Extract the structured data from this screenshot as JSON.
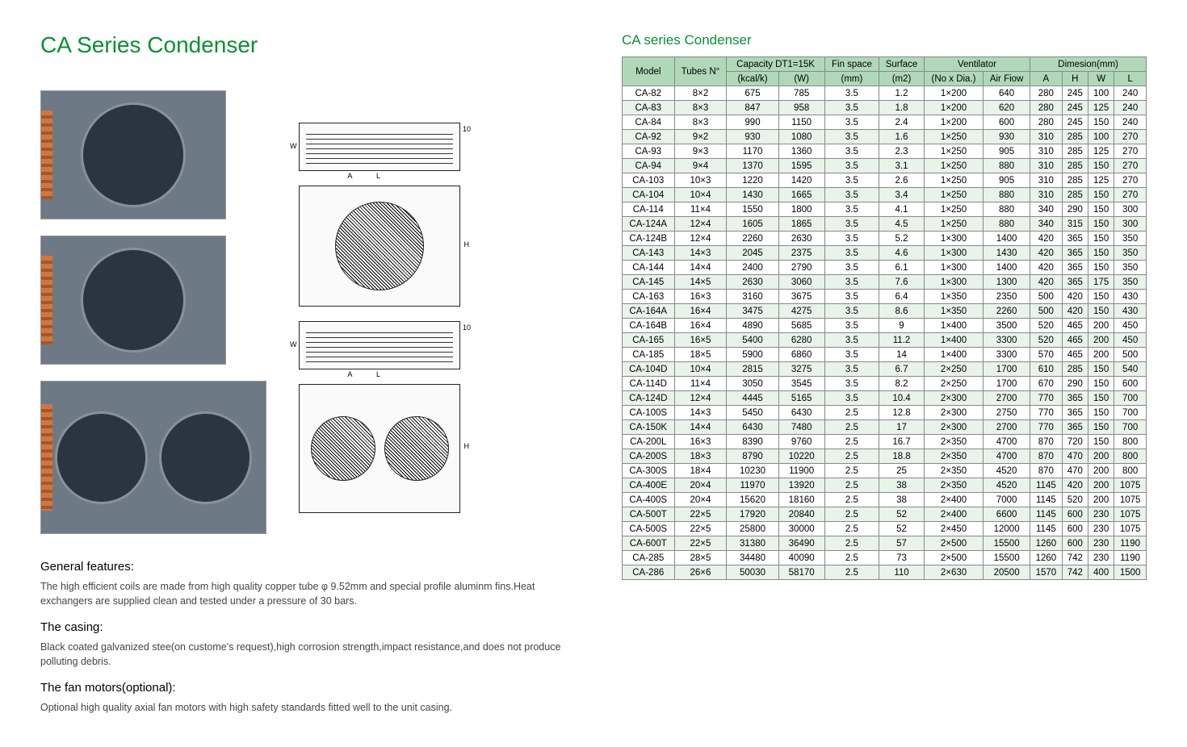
{
  "main_title": "CA Series Condenser",
  "table_title": "CA series Condenser",
  "features": {
    "h1": "General features:",
    "p1": "The high efficient coils are made from high quality copper tube φ 9.52mm and special profile aluminm fins.Heat exchangers are supplied clean and tested under a pressure of 30 bars.",
    "h2": "The casing:",
    "p2": "Black coated galvanized stee(on custome's request),high corrosion strength,impact resistance,and does not produce polluting debris.",
    "h3": "The fan motors(optional):",
    "p3": "Optional high quality axial fan motors with high safety standards fitted well to the unit casing."
  },
  "table": {
    "headers": {
      "model": "Model",
      "tubes": "Tubes N°",
      "capacity": "Capacity DT1=15K",
      "kcalk": "(kcal/k)",
      "w": "(W)",
      "finspace": "Fin space",
      "mm": "(mm)",
      "surface": "Surface",
      "m2": "(m2)",
      "ventilator": "Ventilator",
      "noxdia": "(No x Dia.)",
      "airflow": "Air Fiow",
      "dimension": "Dimesion(mm)",
      "A": "A",
      "H": "H",
      "W": "W",
      "L": "L"
    },
    "rows": [
      [
        "CA-82",
        "8×2",
        "675",
        "785",
        "3.5",
        "1.2",
        "1×200",
        "640",
        "280",
        "245",
        "100",
        "240"
      ],
      [
        "CA-83",
        "8×3",
        "847",
        "958",
        "3.5",
        "1.8",
        "1×200",
        "620",
        "280",
        "245",
        "125",
        "240"
      ],
      [
        "CA-84",
        "8×3",
        "990",
        "1150",
        "3.5",
        "2.4",
        "1×200",
        "600",
        "280",
        "245",
        "150",
        "240"
      ],
      [
        "CA-92",
        "9×2",
        "930",
        "1080",
        "3.5",
        "1.6",
        "1×250",
        "930",
        "310",
        "285",
        "100",
        "270"
      ],
      [
        "CA-93",
        "9×3",
        "1170",
        "1360",
        "3.5",
        "2.3",
        "1×250",
        "905",
        "310",
        "285",
        "125",
        "270"
      ],
      [
        "CA-94",
        "9×4",
        "1370",
        "1595",
        "3.5",
        "3.1",
        "1×250",
        "880",
        "310",
        "285",
        "150",
        "270"
      ],
      [
        "CA-103",
        "10×3",
        "1220",
        "1420",
        "3.5",
        "2.6",
        "1×250",
        "905",
        "310",
        "285",
        "125",
        "270"
      ],
      [
        "CA-104",
        "10×4",
        "1430",
        "1665",
        "3.5",
        "3.4",
        "1×250",
        "880",
        "310",
        "285",
        "150",
        "270"
      ],
      [
        "CA-114",
        "11×4",
        "1550",
        "1800",
        "3.5",
        "4.1",
        "1×250",
        "880",
        "340",
        "290",
        "150",
        "300"
      ],
      [
        "CA-124A",
        "12×4",
        "1605",
        "1865",
        "3.5",
        "4.5",
        "1×250",
        "880",
        "340",
        "315",
        "150",
        "300"
      ],
      [
        "CA-124B",
        "12×4",
        "2260",
        "2630",
        "3.5",
        "5.2",
        "1×300",
        "1400",
        "420",
        "365",
        "150",
        "350"
      ],
      [
        "CA-143",
        "14×3",
        "2045",
        "2375",
        "3.5",
        "4.6",
        "1×300",
        "1430",
        "420",
        "365",
        "150",
        "350"
      ],
      [
        "CA-144",
        "14×4",
        "2400",
        "2790",
        "3.5",
        "6.1",
        "1×300",
        "1400",
        "420",
        "365",
        "150",
        "350"
      ],
      [
        "CA-145",
        "14×5",
        "2630",
        "3060",
        "3.5",
        "7.6",
        "1×300",
        "1300",
        "420",
        "365",
        "175",
        "350"
      ],
      [
        "CA-163",
        "16×3",
        "3160",
        "3675",
        "3.5",
        "6.4",
        "1×350",
        "2350",
        "500",
        "420",
        "150",
        "430"
      ],
      [
        "CA-164A",
        "16×4",
        "3475",
        "4275",
        "3.5",
        "8.6",
        "1×350",
        "2260",
        "500",
        "420",
        "150",
        "430"
      ],
      [
        "CA-164B",
        "16×4",
        "4890",
        "5685",
        "3.5",
        "9",
        "1×400",
        "3500",
        "520",
        "465",
        "200",
        "450"
      ],
      [
        "CA-165",
        "16×5",
        "5400",
        "6280",
        "3.5",
        "11.2",
        "1×400",
        "3300",
        "520",
        "465",
        "200",
        "450"
      ],
      [
        "CA-185",
        "18×5",
        "5900",
        "6860",
        "3.5",
        "14",
        "1×400",
        "3300",
        "570",
        "465",
        "200",
        "500"
      ],
      [
        "CA-104D",
        "10×4",
        "2815",
        "3275",
        "3.5",
        "6.7",
        "2×250",
        "1700",
        "610",
        "285",
        "150",
        "540"
      ],
      [
        "CA-114D",
        "11×4",
        "3050",
        "3545",
        "3.5",
        "8.2",
        "2×250",
        "1700",
        "670",
        "290",
        "150",
        "600"
      ],
      [
        "CA-124D",
        "12×4",
        "4445",
        "5165",
        "3.5",
        "10.4",
        "2×300",
        "2700",
        "770",
        "365",
        "150",
        "700"
      ],
      [
        "CA-100S",
        "14×3",
        "5450",
        "6430",
        "2.5",
        "12.8",
        "2×300",
        "2750",
        "770",
        "365",
        "150",
        "700"
      ],
      [
        "CA-150K",
        "14×4",
        "6430",
        "7480",
        "2.5",
        "17",
        "2×300",
        "2700",
        "770",
        "365",
        "150",
        "700"
      ],
      [
        "CA-200L",
        "16×3",
        "8390",
        "9760",
        "2.5",
        "16.7",
        "2×350",
        "4700",
        "870",
        "720",
        "150",
        "800"
      ],
      [
        "CA-200S",
        "18×3",
        "8790",
        "10220",
        "2.5",
        "18.8",
        "2×350",
        "4700",
        "870",
        "470",
        "200",
        "800"
      ],
      [
        "CA-300S",
        "18×4",
        "10230",
        "11900",
        "2.5",
        "25",
        "2×350",
        "4520",
        "870",
        "470",
        "200",
        "800"
      ],
      [
        "CA-400E",
        "20×4",
        "11970",
        "13920",
        "2.5",
        "38",
        "2×350",
        "4520",
        "1145",
        "420",
        "200",
        "1075"
      ],
      [
        "CA-400S",
        "20×4",
        "15620",
        "18160",
        "2.5",
        "38",
        "2×400",
        "7000",
        "1145",
        "520",
        "200",
        "1075"
      ],
      [
        "CA-500T",
        "22×5",
        "17920",
        "20840",
        "2.5",
        "52",
        "2×400",
        "6600",
        "1145",
        "600",
        "230",
        "1075"
      ],
      [
        "CA-500S",
        "22×5",
        "25800",
        "30000",
        "2.5",
        "52",
        "2×450",
        "12000",
        "1145",
        "600",
        "230",
        "1075"
      ],
      [
        "CA-600T",
        "22×5",
        "31380",
        "36490",
        "2.5",
        "57",
        "2×500",
        "15500",
        "1260",
        "600",
        "230",
        "1190"
      ],
      [
        "CA-285",
        "28×5",
        "34480",
        "40090",
        "2.5",
        "73",
        "2×500",
        "15500",
        "1260",
        "742",
        "230",
        "1190"
      ],
      [
        "CA-286",
        "26×6",
        "50030",
        "58170",
        "2.5",
        "110",
        "2×630",
        "20500",
        "1570",
        "742",
        "400",
        "1500"
      ]
    ]
  },
  "colors": {
    "title": "#0a9030",
    "header_bg": "#b0d8b8",
    "row_even": "#e8f3ea",
    "border": "#888888"
  }
}
